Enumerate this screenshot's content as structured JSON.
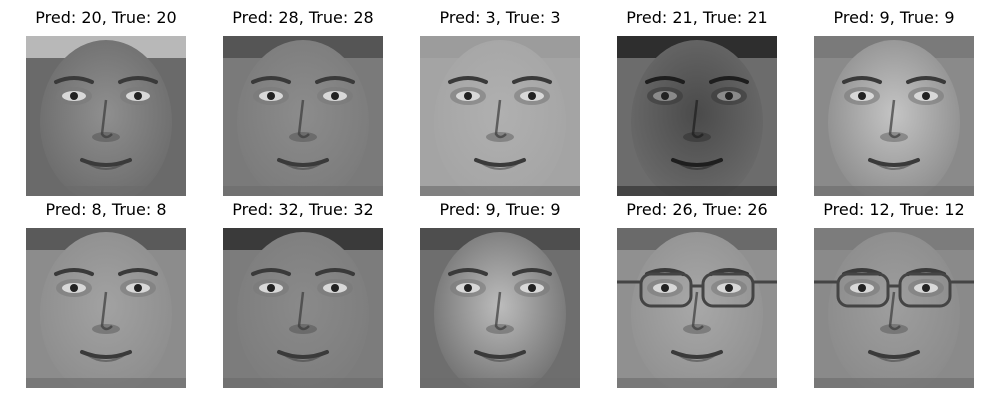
{
  "grid": {
    "panels": [
      {
        "title": "Pred: 20, True: 20",
        "pred": 20,
        "true": 20,
        "skin": "#8f8f8f",
        "bg": "#6a6a6a",
        "hair": "#b8b8b8",
        "glasses": false,
        "dark": false
      },
      {
        "title": "Pred: 28, True: 28",
        "pred": 28,
        "true": 28,
        "skin": "#8c8c8c",
        "bg": "#7a7a7a",
        "hair": "#555555",
        "glasses": false,
        "dark": false
      },
      {
        "title": "Pred: 3, True: 3",
        "pred": 3,
        "true": 3,
        "skin": "#b0b0b0",
        "bg": "#a4a4a4",
        "hair": "#9c9c9c",
        "glasses": false,
        "dark": false
      },
      {
        "title": "Pred: 21, True: 21",
        "pred": 21,
        "true": 21,
        "skin": "#4a4a4a",
        "bg": "#6c6c6c",
        "hair": "#2e2e2e",
        "glasses": false,
        "dark": true
      },
      {
        "title": "Pred: 9, True: 9",
        "pred": 9,
        "true": 9,
        "skin": "#c4c4c4",
        "bg": "#8a8a8a",
        "hair": "#7a7a7a",
        "glasses": false,
        "dark": false
      },
      {
        "title": "Pred: 8, True: 8",
        "pred": 8,
        "true": 8,
        "skin": "#a2a2a2",
        "bg": "#8c8c8c",
        "hair": "#5a5a5a",
        "glasses": false,
        "dark": false
      },
      {
        "title": "Pred: 32, True: 32",
        "pred": 32,
        "true": 32,
        "skin": "#8a8a8a",
        "bg": "#7c7c7c",
        "hair": "#3a3a3a",
        "glasses": false,
        "dark": false
      },
      {
        "title": "Pred: 9, True: 9",
        "pred": 9,
        "true": 9,
        "skin": "#bcbcbc",
        "bg": "#6e6e6e",
        "hair": "#4e4e4e",
        "glasses": false,
        "dark": false
      },
      {
        "title": "Pred: 26, True: 26",
        "pred": 26,
        "true": 26,
        "skin": "#a8a8a8",
        "bg": "#909090",
        "hair": "#6a6a6a",
        "glasses": true,
        "dark": false
      },
      {
        "title": "Pred: 12, True: 12",
        "pred": 12,
        "true": 12,
        "skin": "#9e9e9e",
        "bg": "#8a8a8a",
        "hair": "#7c7c7c",
        "glasses": true,
        "dark": false
      }
    ]
  }
}
